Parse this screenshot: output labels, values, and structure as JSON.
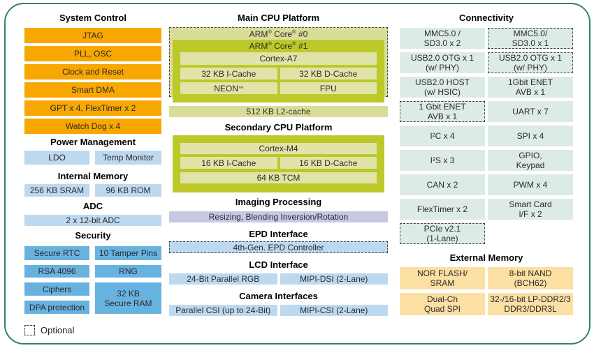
{
  "legend": {
    "optional": "Optional"
  },
  "colors": {
    "frame_border": "#35806F",
    "orange": "#F8A600",
    "light_blue": "#BDD9F0",
    "medium_blue": "#68B2E0",
    "olive_green": "#BCC929",
    "pale_olive": "#D9DD98",
    "cell_olive": "#E1E4A8",
    "lavender": "#C5C9E4",
    "mint": "#DDEBE5",
    "peach": "#FBDFA3"
  },
  "left": {
    "system_control": {
      "title": "System Control",
      "items": [
        "JTAG",
        "PLL, OSC",
        "Clock and Reset",
        "Smart DMA",
        "GPT x 4, FlexTimer x 2",
        "Watch Dog x 4"
      ]
    },
    "power_management": {
      "title": "Power Management",
      "ldo": "LDO",
      "temp_monitor": "Temp Monitor"
    },
    "internal_memory": {
      "title": "Internal Memory",
      "sram": "256 KB SRAM",
      "rom": "96 KB ROM"
    },
    "adc": {
      "title": "ADC",
      "block": "2 x 12-bit ADC"
    },
    "security": {
      "title": "Security",
      "secure_rtc": "Secure RTC",
      "tamper_pins": "10 Tamper Pins",
      "rsa": "RSA 4096",
      "rng": "RNG",
      "ciphers": "Ciphers",
      "dpa": "DPA protection",
      "secure_ram": "32 KB\nSecure RAM"
    }
  },
  "middle": {
    "main_cpu": {
      "title": "Main CPU Platform",
      "core0": "ARM® Core® #0",
      "core1": "ARM® Core® #1",
      "cpu": "Cortex-A7",
      "icache": "32 KB I-Cache",
      "dcache": "32 KB D-Cache",
      "neon": "NEON™",
      "fpu": "FPU",
      "l2": "512 KB L2-cache"
    },
    "secondary_cpu": {
      "title": "Secondary CPU Platform",
      "cpu": "Cortex-M4",
      "icache": "16 KB I-Cache",
      "dcache": "16 KB D-Cache",
      "tcm": "64 KB TCM"
    },
    "imaging": {
      "title": "Imaging Processing",
      "block": "Resizing, Blending Inversion/Rotation"
    },
    "epd": {
      "title": "EPD Interface",
      "controller": "4th-Gen. EPD Controller",
      "optional": true
    },
    "lcd": {
      "title": "LCD Interface",
      "rgb": "24-Bit Parallel RGB",
      "mipi_dsi": "MIPI-DSI (2-Lane)"
    },
    "camera": {
      "title": "Camera Interfaces",
      "parallel_csi": "Parallel CSI (up to 24-Bit)",
      "mipi_csi": "MIPI-CSI (2-Lane)"
    }
  },
  "right": {
    "connectivity": {
      "title": "Connectivity",
      "cells": [
        {
          "label": "MMC5.0 /\nSD3.0 x 2",
          "optional": false
        },
        {
          "label": "MMC5.0/\nSD3.0 x 1",
          "optional": true
        },
        {
          "label": "USB2.0 OTG x 1\n(w/ PHY)",
          "optional": false
        },
        {
          "label": "USB2.0 OTG x 1\n(w/ PHY)",
          "optional": true
        },
        {
          "label": "USB2.0 HOST\n(w/ HSIC)",
          "optional": false
        },
        {
          "label": "1Gbit ENET\nAVB x 1",
          "optional": false
        },
        {
          "label": "1 Gbit ENET\nAVB x 1",
          "optional": true
        },
        {
          "label": "UART x 7",
          "optional": false
        },
        {
          "label": "I²C x 4",
          "optional": false
        },
        {
          "label": "SPI x 4",
          "optional": false
        },
        {
          "label": "I²S x 3",
          "optional": false
        },
        {
          "label": "GPIO,\nKeypad",
          "optional": false
        },
        {
          "label": "CAN x 2",
          "optional": false
        },
        {
          "label": "PWM x 4",
          "optional": false
        },
        {
          "label": "FlexTimer x 2",
          "optional": false
        },
        {
          "label": "Smart Card\nI/F x 2",
          "optional": false
        },
        {
          "label": "PCIe v2.1\n(1-Lane)",
          "optional": true
        }
      ]
    },
    "external_memory": {
      "title": "External Memory",
      "cells": [
        "NOR FLASH/\nSRAM",
        "8-bit NAND\n(BCH62)",
        "Dual-Ch\nQuad SPI",
        "32-/16-bit LP-DDR2/3\nDDR3/DDR3L"
      ]
    }
  }
}
